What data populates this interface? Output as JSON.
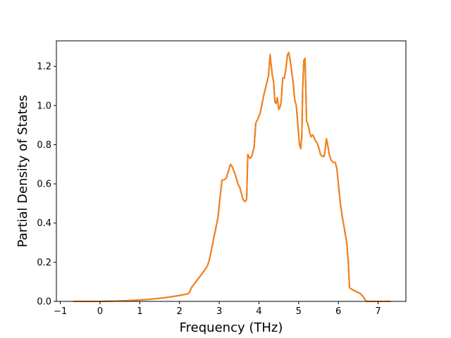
{
  "chart_data": {
    "type": "line",
    "title": "",
    "xlabel": "Frequency (THz)",
    "ylabel": "Partial Density of States",
    "xlim": [
      -1.1,
      7.7
    ],
    "ylim": [
      0.0,
      1.33
    ],
    "xticks": [
      -1,
      0,
      1,
      2,
      3,
      4,
      5,
      6,
      7
    ],
    "xtick_labels": [
      "−1",
      "0",
      "1",
      "2",
      "3",
      "4",
      "5",
      "6",
      "7"
    ],
    "yticks": [
      0.0,
      0.2,
      0.4,
      0.6,
      0.8,
      1.0,
      1.2
    ],
    "ytick_labels": [
      "0.0",
      "0.2",
      "0.4",
      "0.6",
      "0.8",
      "1.0",
      "1.2"
    ],
    "grid": false,
    "legend": "none",
    "colors": {
      "series_back": "#1f77b4",
      "series_front": "#ff7f0e",
      "overlap": "#e8842b",
      "axis": "#000000"
    },
    "series": [
      {
        "points": [
          [
            -0.68,
            0.0
          ],
          [
            -0.3,
            0.0
          ],
          [
            0.0,
            0.0
          ],
          [
            0.4,
            0.002
          ],
          [
            0.8,
            0.005
          ],
          [
            1.2,
            0.01
          ],
          [
            1.6,
            0.018
          ],
          [
            2.0,
            0.03
          ],
          [
            2.2,
            0.038
          ],
          [
            2.25,
            0.045
          ],
          [
            2.3,
            0.07
          ],
          [
            2.45,
            0.11
          ],
          [
            2.6,
            0.15
          ],
          [
            2.7,
            0.18
          ],
          [
            2.75,
            0.21
          ],
          [
            2.82,
            0.28
          ],
          [
            2.9,
            0.36
          ],
          [
            2.97,
            0.43
          ],
          [
            3.02,
            0.53
          ],
          [
            3.07,
            0.62
          ],
          [
            3.12,
            0.62
          ],
          [
            3.18,
            0.63
          ],
          [
            3.24,
            0.67
          ],
          [
            3.28,
            0.7
          ],
          [
            3.32,
            0.69
          ],
          [
            3.38,
            0.66
          ],
          [
            3.43,
            0.63
          ],
          [
            3.47,
            0.6
          ],
          [
            3.52,
            0.58
          ],
          [
            3.56,
            0.55
          ],
          [
            3.6,
            0.52
          ],
          [
            3.65,
            0.51
          ],
          [
            3.69,
            0.52
          ],
          [
            3.72,
            0.75
          ],
          [
            3.77,
            0.73
          ],
          [
            3.82,
            0.74
          ],
          [
            3.88,
            0.79
          ],
          [
            3.92,
            0.91
          ],
          [
            3.97,
            0.93
          ],
          [
            4.03,
            0.96
          ],
          [
            4.08,
            1.01
          ],
          [
            4.13,
            1.06
          ],
          [
            4.18,
            1.1
          ],
          [
            4.24,
            1.15
          ],
          [
            4.28,
            1.26
          ],
          [
            4.3,
            1.22
          ],
          [
            4.34,
            1.15
          ],
          [
            4.37,
            1.12
          ],
          [
            4.4,
            1.02
          ],
          [
            4.43,
            1.01
          ],
          [
            4.46,
            1.04
          ],
          [
            4.5,
            0.98
          ],
          [
            4.53,
            0.99
          ],
          [
            4.56,
            1.02
          ],
          [
            4.6,
            1.14
          ],
          [
            4.64,
            1.14
          ],
          [
            4.68,
            1.19
          ],
          [
            4.72,
            1.26
          ],
          [
            4.75,
            1.27
          ],
          [
            4.78,
            1.24
          ],
          [
            4.82,
            1.18
          ],
          [
            4.86,
            1.12
          ],
          [
            4.9,
            1.03
          ],
          [
            4.94,
            1.0
          ],
          [
            4.98,
            0.9
          ],
          [
            5.02,
            0.8
          ],
          [
            5.05,
            0.78
          ],
          [
            5.08,
            0.84
          ],
          [
            5.1,
            1.08
          ],
          [
            5.13,
            1.23
          ],
          [
            5.16,
            1.24
          ],
          [
            5.2,
            0.92
          ],
          [
            5.24,
            0.9
          ],
          [
            5.28,
            0.86
          ],
          [
            5.31,
            0.84
          ],
          [
            5.35,
            0.85
          ],
          [
            5.38,
            0.84
          ],
          [
            5.42,
            0.82
          ],
          [
            5.46,
            0.81
          ],
          [
            5.5,
            0.79
          ],
          [
            5.55,
            0.75
          ],
          [
            5.6,
            0.74
          ],
          [
            5.64,
            0.74
          ],
          [
            5.67,
            0.78
          ],
          [
            5.7,
            0.83
          ],
          [
            5.73,
            0.8
          ],
          [
            5.77,
            0.75
          ],
          [
            5.82,
            0.72
          ],
          [
            5.87,
            0.71
          ],
          [
            5.92,
            0.71
          ],
          [
            5.96,
            0.68
          ],
          [
            6.0,
            0.6
          ],
          [
            6.05,
            0.5
          ],
          [
            6.1,
            0.43
          ],
          [
            6.16,
            0.36
          ],
          [
            6.21,
            0.3
          ],
          [
            6.25,
            0.2
          ],
          [
            6.28,
            0.07
          ],
          [
            6.35,
            0.06
          ],
          [
            6.45,
            0.05
          ],
          [
            6.55,
            0.04
          ],
          [
            6.62,
            0.025
          ],
          [
            6.67,
            0.01
          ],
          [
            6.7,
            0.0
          ],
          [
            6.9,
            0.0
          ],
          [
            7.1,
            0.0
          ],
          [
            7.32,
            0.0
          ]
        ]
      },
      {
        "points": [
          [
            -0.68,
            0.0
          ],
          [
            -0.3,
            0.0
          ],
          [
            0.0,
            0.0
          ],
          [
            0.4,
            0.002
          ],
          [
            0.8,
            0.005
          ],
          [
            1.2,
            0.01
          ],
          [
            1.6,
            0.018
          ],
          [
            2.0,
            0.03
          ],
          [
            2.2,
            0.038
          ],
          [
            2.25,
            0.045
          ],
          [
            2.3,
            0.07
          ],
          [
            2.45,
            0.11
          ],
          [
            2.6,
            0.15
          ],
          [
            2.7,
            0.18
          ],
          [
            2.75,
            0.21
          ],
          [
            2.82,
            0.28
          ],
          [
            2.9,
            0.36
          ],
          [
            2.97,
            0.43
          ],
          [
            3.02,
            0.53
          ],
          [
            3.07,
            0.62
          ],
          [
            3.12,
            0.62
          ],
          [
            3.18,
            0.63
          ],
          [
            3.24,
            0.67
          ],
          [
            3.28,
            0.7
          ],
          [
            3.32,
            0.69
          ],
          [
            3.38,
            0.66
          ],
          [
            3.43,
            0.63
          ],
          [
            3.47,
            0.6
          ],
          [
            3.52,
            0.58
          ],
          [
            3.56,
            0.55
          ],
          [
            3.6,
            0.52
          ],
          [
            3.65,
            0.51
          ],
          [
            3.69,
            0.52
          ],
          [
            3.72,
            0.75
          ],
          [
            3.77,
            0.73
          ],
          [
            3.82,
            0.74
          ],
          [
            3.88,
            0.79
          ],
          [
            3.92,
            0.91
          ],
          [
            3.97,
            0.93
          ],
          [
            4.03,
            0.96
          ],
          [
            4.08,
            1.01
          ],
          [
            4.13,
            1.06
          ],
          [
            4.18,
            1.1
          ],
          [
            4.24,
            1.15
          ],
          [
            4.28,
            1.26
          ],
          [
            4.3,
            1.22
          ],
          [
            4.34,
            1.15
          ],
          [
            4.37,
            1.12
          ],
          [
            4.4,
            1.02
          ],
          [
            4.43,
            1.01
          ],
          [
            4.46,
            1.04
          ],
          [
            4.5,
            0.98
          ],
          [
            4.53,
            0.99
          ],
          [
            4.56,
            1.02
          ],
          [
            4.6,
            1.14
          ],
          [
            4.64,
            1.14
          ],
          [
            4.68,
            1.19
          ],
          [
            4.72,
            1.26
          ],
          [
            4.75,
            1.27
          ],
          [
            4.78,
            1.24
          ],
          [
            4.82,
            1.18
          ],
          [
            4.86,
            1.12
          ],
          [
            4.9,
            1.03
          ],
          [
            4.94,
            1.0
          ],
          [
            4.98,
            0.9
          ],
          [
            5.02,
            0.8
          ],
          [
            5.05,
            0.78
          ],
          [
            5.08,
            0.84
          ],
          [
            5.1,
            1.08
          ],
          [
            5.13,
            1.23
          ],
          [
            5.16,
            1.24
          ],
          [
            5.2,
            0.92
          ],
          [
            5.24,
            0.9
          ],
          [
            5.28,
            0.86
          ],
          [
            5.31,
            0.84
          ],
          [
            5.35,
            0.85
          ],
          [
            5.38,
            0.84
          ],
          [
            5.42,
            0.82
          ],
          [
            5.46,
            0.81
          ],
          [
            5.5,
            0.79
          ],
          [
            5.55,
            0.75
          ],
          [
            5.6,
            0.74
          ],
          [
            5.64,
            0.74
          ],
          [
            5.67,
            0.78
          ],
          [
            5.7,
            0.83
          ],
          [
            5.73,
            0.8
          ],
          [
            5.77,
            0.75
          ],
          [
            5.82,
            0.72
          ],
          [
            5.87,
            0.71
          ],
          [
            5.92,
            0.71
          ],
          [
            5.96,
            0.68
          ],
          [
            6.0,
            0.6
          ],
          [
            6.05,
            0.5
          ],
          [
            6.1,
            0.43
          ],
          [
            6.16,
            0.36
          ],
          [
            6.21,
            0.3
          ],
          [
            6.25,
            0.2
          ],
          [
            6.28,
            0.07
          ],
          [
            6.35,
            0.06
          ],
          [
            6.45,
            0.05
          ],
          [
            6.55,
            0.04
          ],
          [
            6.62,
            0.025
          ],
          [
            6.67,
            0.01
          ],
          [
            6.7,
            0.0
          ],
          [
            6.9,
            0.0
          ],
          [
            7.1,
            0.0
          ],
          [
            7.32,
            0.0
          ]
        ]
      }
    ]
  }
}
